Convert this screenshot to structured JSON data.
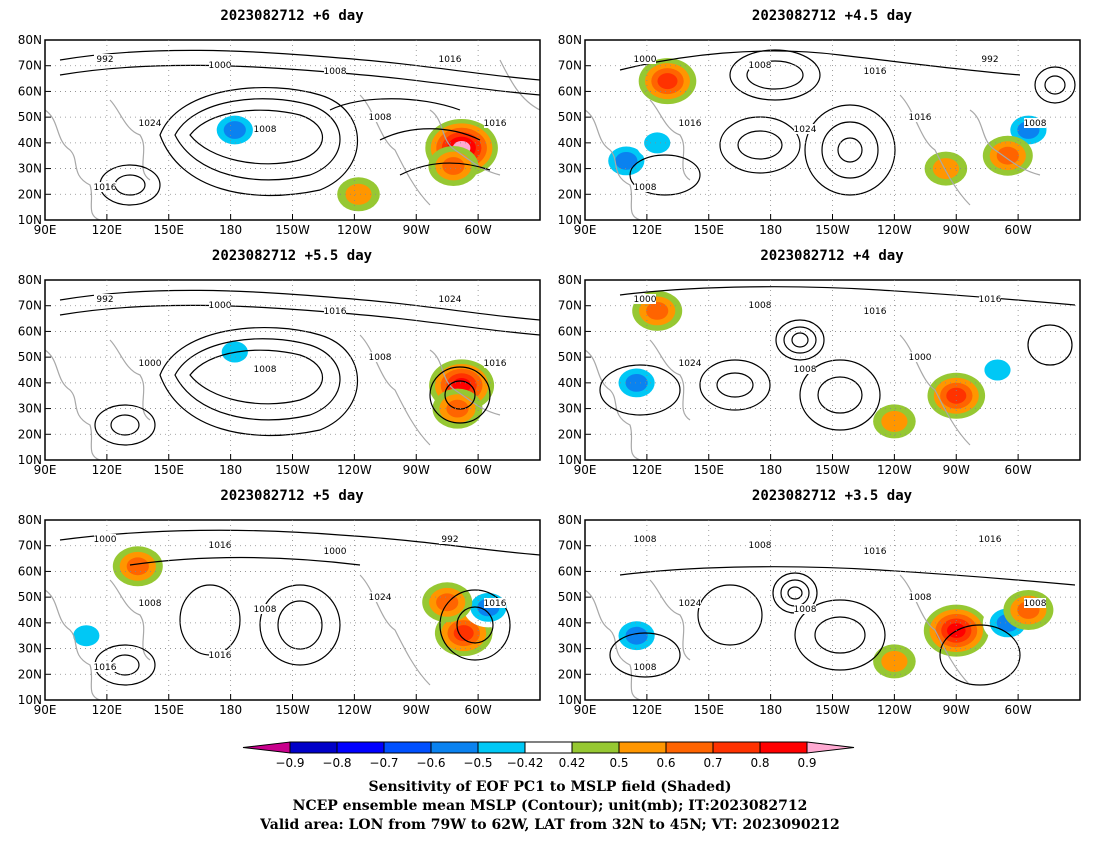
{
  "panels": [
    {
      "title": "2023082712 +6 day",
      "contour_labels": [
        "992",
        "1000",
        "1008",
        "1016",
        "1024",
        "1008",
        "1008",
        "1016",
        "1016"
      ],
      "hotspots": [
        {
          "lon": -68,
          "lat": 38,
          "level": 0.9
        },
        {
          "lon": -72,
          "lat": 31,
          "level": 0.6
        },
        {
          "lon": -178,
          "lat": 45,
          "level": -0.6
        },
        {
          "lon": -118,
          "lat": 20,
          "level": 0.5
        }
      ]
    },
    {
      "title": "2023082712 +4.5 day",
      "contour_labels": [
        "1000",
        "1008",
        "1016",
        "992",
        "1016",
        "1024",
        "1016",
        "1008",
        "1008"
      ],
      "hotspots": [
        {
          "lon": 130,
          "lat": 64,
          "level": 0.7
        },
        {
          "lon": 110,
          "lat": 33,
          "level": -0.6
        },
        {
          "lon": 125,
          "lat": 40,
          "level": -0.5
        },
        {
          "lon": -55,
          "lat": 45,
          "level": -0.6
        },
        {
          "lon": -65,
          "lat": 35,
          "level": 0.6
        },
        {
          "lon": -95,
          "lat": 30,
          "level": 0.5
        }
      ]
    },
    {
      "title": "2023082712 +5.5 day",
      "contour_labels": [
        "992",
        "1000",
        "1016",
        "1024",
        "1000",
        "1008",
        "1008",
        "1016"
      ],
      "hotspots": [
        {
          "lon": -68,
          "lat": 39,
          "level": 0.8
        },
        {
          "lon": -70,
          "lat": 30,
          "level": 0.6
        },
        {
          "lon": -178,
          "lat": 52,
          "level": -0.5
        }
      ]
    },
    {
      "title": "2023082712 +4 day",
      "contour_labels": [
        "1000",
        "1008",
        "1016",
        "1016",
        "1024",
        "1008",
        "1000"
      ],
      "hotspots": [
        {
          "lon": 125,
          "lat": 68,
          "level": 0.6
        },
        {
          "lon": 115,
          "lat": 40,
          "level": -0.6
        },
        {
          "lon": -120,
          "lat": 25,
          "level": 0.5
        },
        {
          "lon": -90,
          "lat": 35,
          "level": 0.7
        },
        {
          "lon": -70,
          "lat": 45,
          "level": -0.5
        }
      ]
    },
    {
      "title": "2023082712 +5 day",
      "contour_labels": [
        "1000",
        "1016",
        "1000",
        "992",
        "1008",
        "1008",
        "1024",
        "1016",
        "1016",
        "1016"
      ],
      "hotspots": [
        {
          "lon": 110,
          "lat": 35,
          "level": -0.5
        },
        {
          "lon": 135,
          "lat": 62,
          "level": 0.6
        },
        {
          "lon": -67,
          "lat": 36,
          "level": 0.7
        },
        {
          "lon": -55,
          "lat": 46,
          "level": -0.6
        },
        {
          "lon": -75,
          "lat": 48,
          "level": 0.6
        }
      ]
    },
    {
      "title": "2023082712 +3.5 day",
      "contour_labels": [
        "1008",
        "1008",
        "1016",
        "1016",
        "1024",
        "1008",
        "1008",
        "1008",
        "1008"
      ],
      "hotspots": [
        {
          "lon": 115,
          "lat": 35,
          "level": -0.6
        },
        {
          "lon": -90,
          "lat": 37,
          "level": 0.8
        },
        {
          "lon": -120,
          "lat": 25,
          "level": 0.5
        },
        {
          "lon": -65,
          "lat": 40,
          "level": -0.6
        },
        {
          "lon": -55,
          "lat": 45,
          "level": 0.6
        }
      ]
    }
  ],
  "axes": {
    "lon_labels": [
      "90E",
      "120E",
      "150E",
      "180",
      "150W",
      "120W",
      "90W",
      "60W"
    ],
    "lat_labels": [
      "10N",
      "20N",
      "30N",
      "40N",
      "50N",
      "60N",
      "70N",
      "80N"
    ],
    "lon_range": [
      90,
      330
    ],
    "lat_range": [
      10,
      80
    ]
  },
  "colorbar": {
    "labels": [
      "−0.9",
      "−0.8",
      "−0.7",
      "−0.6",
      "−0.5",
      "−0.42",
      "0.42",
      "0.5",
      "0.6",
      "0.7",
      "0.8",
      "0.9"
    ],
    "colors": [
      "#c8008c",
      "#0000c8",
      "#0000ff",
      "#0050ff",
      "#0a82f0",
      "#00c8f5",
      "#ffffff",
      "#96c832",
      "#ff9600",
      "#ff6400",
      "#ff3200",
      "#ff0000",
      "#ffaad2"
    ]
  },
  "captions": [
    "Sensitivity of EOF PC1 to MSLP field (Shaded)",
    "NCEP ensemble mean MSLP (Contour); unit(mb); IT:2023082712",
    "Valid area: LON from 79W to 62W, LAT from 32N to 45N; VT: 2023090212"
  ]
}
